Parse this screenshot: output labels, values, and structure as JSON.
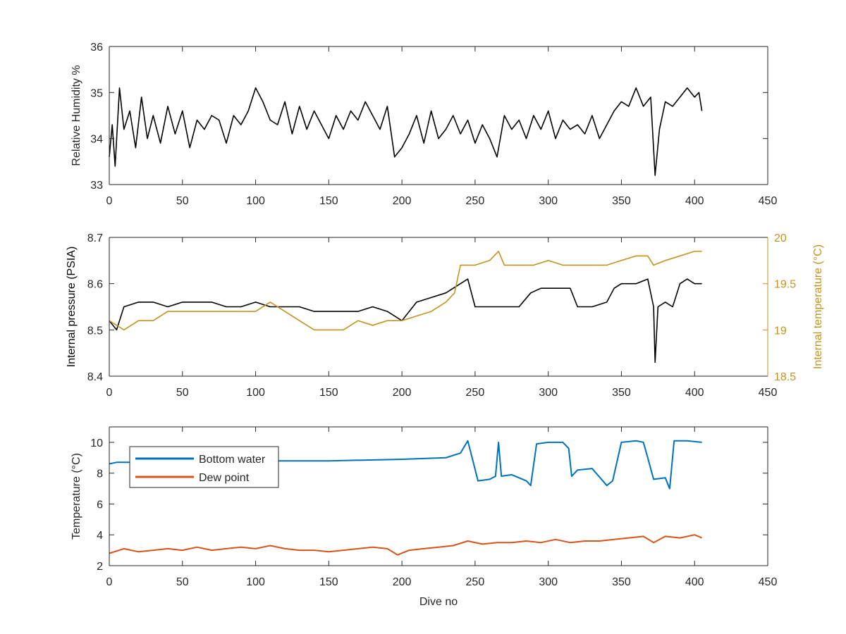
{
  "colors": {
    "axis": "#262626",
    "rh": "#000000",
    "pressure": "#000000",
    "temperature_right": "#C29320",
    "bottom_water": "#0072BD",
    "dew_point": "#D95319"
  },
  "chart_data": [
    {
      "type": "line",
      "xlabel": "",
      "ylabel": "Relative Humidity %",
      "xlim": [
        0,
        450
      ],
      "ylim": [
        33,
        36
      ],
      "x_ticks": [
        "0",
        "50",
        "100",
        "150",
        "200",
        "250",
        "300",
        "350",
        "400",
        "450"
      ],
      "y_ticks": [
        "33",
        "34",
        "35",
        "36"
      ],
      "series": [
        {
          "x": [
            0,
            2,
            4,
            7,
            10,
            14,
            18,
            22,
            26,
            30,
            35,
            40,
            45,
            50,
            55,
            60,
            65,
            70,
            75,
            80,
            85,
            90,
            95,
            100,
            105,
            110,
            115,
            120,
            125,
            130,
            135,
            140,
            145,
            150,
            155,
            160,
            165,
            170,
            175,
            180,
            185,
            190,
            195,
            200,
            205,
            210,
            215,
            220,
            225,
            230,
            235,
            240,
            245,
            250,
            255,
            260,
            265,
            270,
            275,
            280,
            285,
            290,
            295,
            300,
            305,
            310,
            315,
            320,
            325,
            330,
            335,
            340,
            345,
            350,
            355,
            360,
            365,
            370,
            373,
            376,
            380,
            385,
            390,
            395,
            400,
            403,
            405
          ],
          "values": [
            33.6,
            34.3,
            33.4,
            35.1,
            34.2,
            34.6,
            33.8,
            34.9,
            34.0,
            34.5,
            33.9,
            34.7,
            34.1,
            34.6,
            33.8,
            34.4,
            34.2,
            34.5,
            34.4,
            33.9,
            34.5,
            34.3,
            34.6,
            35.1,
            34.8,
            34.4,
            34.3,
            34.8,
            34.1,
            34.7,
            34.2,
            34.6,
            34.3,
            34.0,
            34.5,
            34.2,
            34.6,
            34.4,
            34.8,
            34.5,
            34.2,
            34.7,
            33.6,
            33.8,
            34.1,
            34.5,
            33.9,
            34.6,
            34.0,
            34.2,
            34.5,
            34.1,
            34.4,
            33.9,
            34.3,
            34.0,
            33.6,
            34.5,
            34.2,
            34.4,
            34.0,
            34.5,
            34.2,
            34.6,
            34.0,
            34.4,
            34.2,
            34.3,
            34.1,
            34.5,
            34.0,
            34.3,
            34.6,
            34.8,
            34.7,
            35.1,
            34.7,
            34.9,
            33.2,
            34.2,
            34.8,
            34.7,
            34.9,
            35.1,
            34.9,
            35.0,
            34.6
          ]
        }
      ]
    },
    {
      "type": "line",
      "xlabel": "",
      "ylabel": "Internal pressure (PSIA)",
      "y2label": "Internal temperature (°C)",
      "xlim": [
        0,
        450
      ],
      "ylim": [
        8.4,
        8.7
      ],
      "y2lim": [
        18.5,
        20
      ],
      "x_ticks": [
        "0",
        "50",
        "100",
        "150",
        "200",
        "250",
        "300",
        "350",
        "400",
        "450"
      ],
      "y_ticks": [
        "8.4",
        "8.5",
        "8.6",
        "8.7"
      ],
      "y2_ticks": [
        "18.5",
        "19",
        "19.5",
        "20"
      ],
      "series": [
        {
          "axis": "left",
          "x": [
            0,
            5,
            10,
            20,
            30,
            40,
            50,
            60,
            70,
            80,
            90,
            100,
            110,
            120,
            130,
            140,
            150,
            160,
            170,
            180,
            190,
            200,
            210,
            220,
            230,
            235,
            240,
            245,
            250,
            255,
            260,
            270,
            280,
            288,
            295,
            305,
            315,
            320,
            330,
            340,
            345,
            350,
            360,
            368,
            372,
            373,
            375,
            380,
            385,
            390,
            395,
            400,
            405
          ],
          "values": [
            8.52,
            8.5,
            8.55,
            8.56,
            8.56,
            8.55,
            8.56,
            8.56,
            8.56,
            8.55,
            8.55,
            8.56,
            8.55,
            8.55,
            8.55,
            8.54,
            8.54,
            8.54,
            8.54,
            8.55,
            8.54,
            8.52,
            8.56,
            8.57,
            8.58,
            8.59,
            8.6,
            8.61,
            8.55,
            8.55,
            8.55,
            8.55,
            8.55,
            8.58,
            8.59,
            8.59,
            8.59,
            8.55,
            8.55,
            8.56,
            8.59,
            8.6,
            8.6,
            8.61,
            8.55,
            8.43,
            8.55,
            8.56,
            8.55,
            8.6,
            8.61,
            8.6,
            8.6
          ]
        },
        {
          "axis": "right",
          "x": [
            0,
            10,
            20,
            30,
            40,
            50,
            60,
            70,
            80,
            90,
            100,
            110,
            120,
            130,
            140,
            150,
            160,
            170,
            180,
            190,
            200,
            210,
            220,
            230,
            236,
            240,
            250,
            260,
            266,
            270,
            280,
            290,
            300,
            310,
            320,
            330,
            340,
            350,
            360,
            368,
            372,
            380,
            390,
            400,
            405
          ],
          "values": [
            19.1,
            19.0,
            19.1,
            19.1,
            19.2,
            19.2,
            19.2,
            19.2,
            19.2,
            19.2,
            19.2,
            19.3,
            19.2,
            19.1,
            19.0,
            19.0,
            19.0,
            19.1,
            19.05,
            19.1,
            19.1,
            19.15,
            19.2,
            19.3,
            19.4,
            19.7,
            19.7,
            19.75,
            19.85,
            19.7,
            19.7,
            19.7,
            19.75,
            19.7,
            19.7,
            19.7,
            19.7,
            19.75,
            19.8,
            19.8,
            19.7,
            19.75,
            19.8,
            19.85,
            19.85
          ]
        }
      ]
    },
    {
      "type": "line",
      "xlabel": "Dive no",
      "ylabel": "Temperature (°C)",
      "xlim": [
        0,
        450
      ],
      "ylim": [
        2,
        11
      ],
      "x_ticks": [
        "0",
        "50",
        "100",
        "150",
        "200",
        "250",
        "300",
        "350",
        "400",
        "450"
      ],
      "y_ticks": [
        "2",
        "4",
        "6",
        "8",
        "10"
      ],
      "legend": "top-left",
      "series": [
        {
          "name": "Bottom water",
          "x": [
            0,
            5,
            20,
            50,
            100,
            150,
            200,
            230,
            240,
            245,
            248,
            252,
            260,
            264,
            266,
            268,
            275,
            285,
            288,
            292,
            300,
            310,
            314,
            316,
            320,
            330,
            340,
            344,
            350,
            360,
            365,
            368,
            372,
            380,
            383,
            386,
            395,
            405
          ],
          "values": [
            8.6,
            8.7,
            8.7,
            8.8,
            8.8,
            8.8,
            8.9,
            9.0,
            9.3,
            10.1,
            9.0,
            7.5,
            7.6,
            7.8,
            10.0,
            7.8,
            7.9,
            7.5,
            7.2,
            9.9,
            10.0,
            10.0,
            9.6,
            7.8,
            8.2,
            8.3,
            7.2,
            7.5,
            10.0,
            10.1,
            10.0,
            9.0,
            7.6,
            7.7,
            7.0,
            10.1,
            10.1,
            10.0
          ]
        },
        {
          "name": "Dew point",
          "x": [
            0,
            10,
            20,
            30,
            40,
            50,
            60,
            70,
            80,
            90,
            100,
            110,
            120,
            130,
            140,
            150,
            160,
            170,
            180,
            190,
            197,
            205,
            215,
            225,
            235,
            245,
            255,
            265,
            275,
            285,
            295,
            305,
            315,
            325,
            335,
            345,
            355,
            365,
            372,
            380,
            390,
            400,
            405
          ],
          "values": [
            2.8,
            3.1,
            2.9,
            3.0,
            3.1,
            3.0,
            3.2,
            3.0,
            3.1,
            3.2,
            3.1,
            3.3,
            3.1,
            3.0,
            3.0,
            2.9,
            3.0,
            3.1,
            3.2,
            3.1,
            2.7,
            3.0,
            3.1,
            3.2,
            3.3,
            3.6,
            3.4,
            3.5,
            3.5,
            3.6,
            3.5,
            3.7,
            3.5,
            3.6,
            3.6,
            3.7,
            3.8,
            3.9,
            3.5,
            3.9,
            3.8,
            4.0,
            3.8
          ]
        }
      ]
    }
  ]
}
